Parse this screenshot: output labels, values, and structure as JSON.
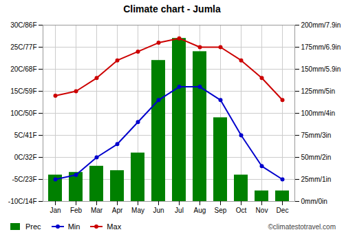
{
  "chart_data": {
    "type": "bar",
    "title": "Climate chart - Jumla",
    "categories": [
      "Jan",
      "Feb",
      "Mar",
      "Apr",
      "May",
      "Jun",
      "Jul",
      "Aug",
      "Sep",
      "Oct",
      "Nov",
      "Dec"
    ],
    "series": [
      {
        "name": "Prec",
        "type": "bar",
        "axis": "y2",
        "color": "#008000",
        "values": [
          30,
          33,
          40,
          35,
          55,
          160,
          185,
          170,
          95,
          30,
          12,
          12
        ]
      },
      {
        "name": "Min",
        "type": "line",
        "marker": "circle",
        "color": "#0000cc",
        "values": [
          -5,
          -4,
          0,
          3,
          8,
          13,
          16,
          16,
          13,
          5,
          -2,
          -5
        ]
      },
      {
        "name": "Max",
        "type": "line",
        "marker": "circle",
        "color": "#cc0000",
        "values": [
          14,
          15,
          18,
          22,
          24,
          26,
          27,
          25,
          25,
          22,
          18,
          13
        ]
      }
    ],
    "ylim": [
      -10,
      30
    ],
    "yticks": [
      {
        "value": -10,
        "label": "-10C/14F"
      },
      {
        "value": -5,
        "label": "-5C/23F"
      },
      {
        "value": 0,
        "label": "0C/32F"
      },
      {
        "value": 5,
        "label": "5C/41F"
      },
      {
        "value": 10,
        "label": "10C/50F"
      },
      {
        "value": 15,
        "label": "15C/59F"
      },
      {
        "value": 20,
        "label": "20C/68F"
      },
      {
        "value": 25,
        "label": "25C/77F"
      },
      {
        "value": 30,
        "label": "30C/86F"
      }
    ],
    "y2lim": [
      0,
      200
    ],
    "y2ticks": [
      {
        "value": 0,
        "label": "0mm/0in"
      },
      {
        "value": 25,
        "label": "25mm/1in"
      },
      {
        "value": 50,
        "label": "50mm/2in"
      },
      {
        "value": 75,
        "label": "75mm/3in"
      },
      {
        "value": 100,
        "label": "100mm/4in"
      },
      {
        "value": 125,
        "label": "125mm/5in"
      },
      {
        "value": 150,
        "label": "150mm/5.9in"
      },
      {
        "value": 175,
        "label": "175mm/6.9in"
      },
      {
        "value": 200,
        "label": "200mm/7.9in"
      }
    ],
    "grid": true,
    "legend": "lower left",
    "annotations": [
      "©climatestotravel.com"
    ]
  }
}
